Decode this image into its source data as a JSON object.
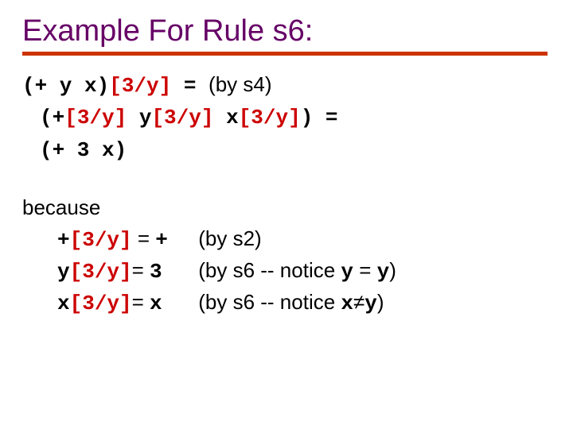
{
  "title": "Example For Rule s6:",
  "colors": {
    "title": "#660066",
    "rule": "#cc3300",
    "subst": "#cc0000",
    "text": "#000000",
    "background": "#ffffff"
  },
  "fonts": {
    "title_family": "Comic Sans MS",
    "title_size_pt": 38,
    "body_family_sans": "Comic Sans MS",
    "body_family_mono": "Courier New",
    "body_size_pt": 26
  },
  "line1": {
    "a": "(+ y x)",
    "b": "[3/y]",
    "c": " = ",
    "d": "(by s4)"
  },
  "line2": {
    "a": "(+",
    "b": "[3/y]",
    "space1": "   ",
    "c": "y",
    "d": "[3/y]",
    "space2": "   ",
    "e": "x",
    "f": "[3/y]",
    "g": ") ="
  },
  "line3": {
    "a": "(+ 3 x)"
  },
  "because": "because",
  "r1": {
    "lhs_a": "+",
    "lhs_b": "[3/y]",
    "lhs_c": " = ",
    "lhs_d": "+",
    "rhs": "(by s2)"
  },
  "r2": {
    "lhs_a": "y",
    "lhs_b": "[3/y]",
    "lhs_c": "= ",
    "lhs_d": "3",
    "rhs_a": "(by s6 -- notice ",
    "rhs_b": "y",
    "rhs_c": " = ",
    "rhs_d": "y",
    "rhs_e": ")"
  },
  "r3": {
    "lhs_a": "x",
    "lhs_b": "[3/y]",
    "lhs_c": "= ",
    "lhs_d": "x",
    "rhs_a": "(by s6 -- notice ",
    "rhs_b": "x",
    "rhs_ne": "≠",
    "rhs_d": "y",
    "rhs_e": ")"
  }
}
